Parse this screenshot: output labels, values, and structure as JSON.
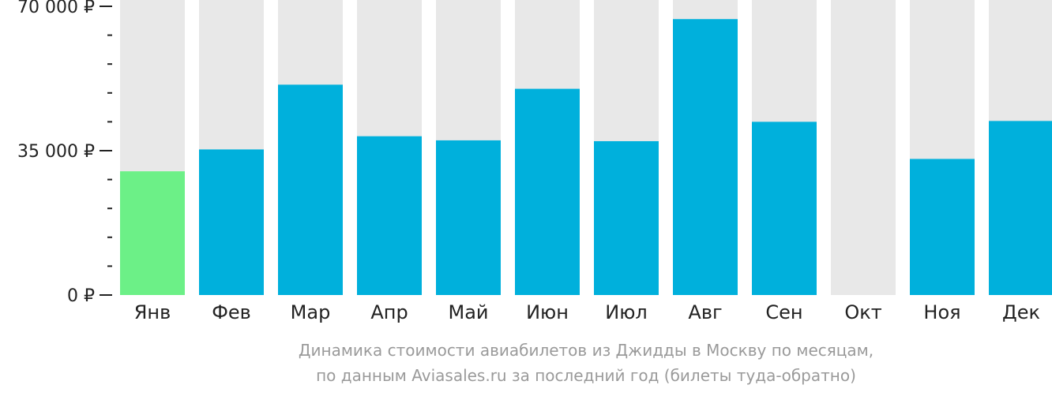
{
  "chart_data": {
    "type": "bar",
    "categories": [
      "Янв",
      "Фев",
      "Мар",
      "Апр",
      "Май",
      "Июн",
      "Июл",
      "Авг",
      "Сен",
      "Окт",
      "Ноя",
      "Дек"
    ],
    "values": [
      30000,
      35300,
      51000,
      38500,
      37500,
      50000,
      37300,
      66900,
      42000,
      null,
      33000,
      42200
    ],
    "ylim": [
      0,
      70000
    ],
    "y_ticks": [
      {
        "value": 0,
        "label": "0 ₽"
      },
      {
        "value": 35000,
        "label": "35 000 ₽"
      },
      {
        "value": 70000,
        "label": "70 000 ₽"
      }
    ],
    "highlight_index": 0,
    "colors": {
      "bar": "#00b0dc",
      "highlight": "#6cf087",
      "background_bar": "#e8e8e8",
      "axis": "#222222"
    },
    "grid": false,
    "legend": "none"
  },
  "caption": {
    "line1": "Динамика стоимости авиабилетов из Джидды в Москву по месяцам,",
    "line2": "по данным Aviasales.ru за последний год (билеты туда-обратно)"
  }
}
